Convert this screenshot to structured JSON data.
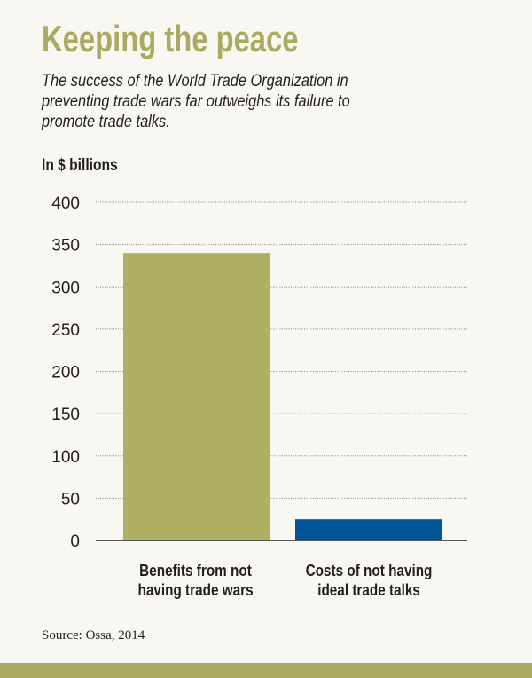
{
  "chart_data": {
    "type": "bar",
    "title": "Keeping the peace",
    "subtitle_lines": [
      "The success of the World Trade Organization in",
      "preventing trade wars far outweighs its failure to",
      "promote trade talks."
    ],
    "ylabel": "In $ billions",
    "categories": [
      [
        "Benefits from not",
        "having trade wars"
      ],
      [
        "Costs of not having",
        "ideal trade talks"
      ]
    ],
    "values": [
      340,
      25
    ],
    "colors": [
      "#b0b065",
      "#005596"
    ],
    "ylim": [
      0,
      400
    ],
    "yticks": [
      0,
      50,
      100,
      150,
      200,
      250,
      300,
      350,
      400
    ],
    "grid": true,
    "source": "Source: Ossa, 2014"
  },
  "theme": {
    "accent": "#abaa63",
    "background": "#f8f7f2"
  }
}
